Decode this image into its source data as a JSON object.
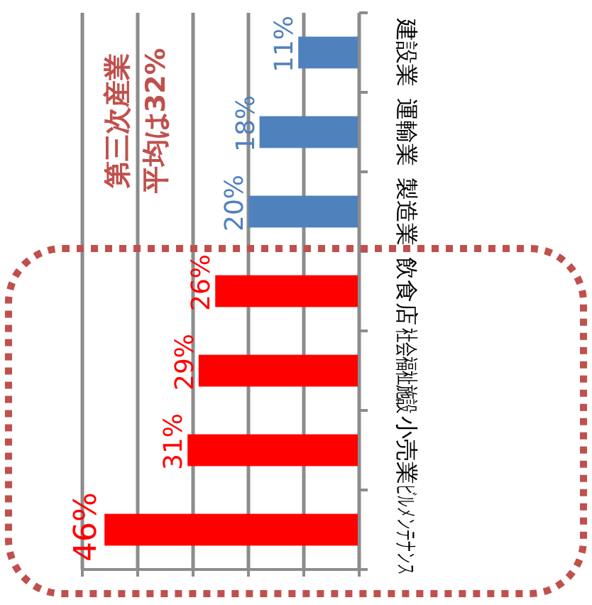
{
  "chart_data": {
    "type": "bar",
    "orientation": "horizontal",
    "categories": [
      "建設業",
      "運輸業",
      "製造業",
      "飲食店",
      "社会福祉施設",
      "小売業",
      "ビルメンテナンス"
    ],
    "values": [
      11,
      18,
      20,
      26,
      29,
      31,
      46
    ],
    "value_labels": [
      "11%",
      "18%",
      "20%",
      "26%",
      "29%",
      "31%",
      "46%"
    ],
    "colors": [
      "#4f81bd",
      "#4f81bd",
      "#4f81bd",
      "#ff0000",
      "#ff0000",
      "#ff0000",
      "#ff0000"
    ],
    "xlim": [
      50,
      0
    ],
    "xticks": [
      {
        "value": 0,
        "label": null
      },
      {
        "value": 10,
        "label": null
      },
      {
        "value": 20,
        "label": null
      },
      {
        "value": 30,
        "label": null
      },
      {
        "value": 40,
        "label": null
      },
      {
        "value": 50,
        "label": null
      }
    ],
    "tick_labels": "y",
    "grid": "x",
    "annotations": [
      "第三次産業",
      "平均は32%"
    ]
  }
}
